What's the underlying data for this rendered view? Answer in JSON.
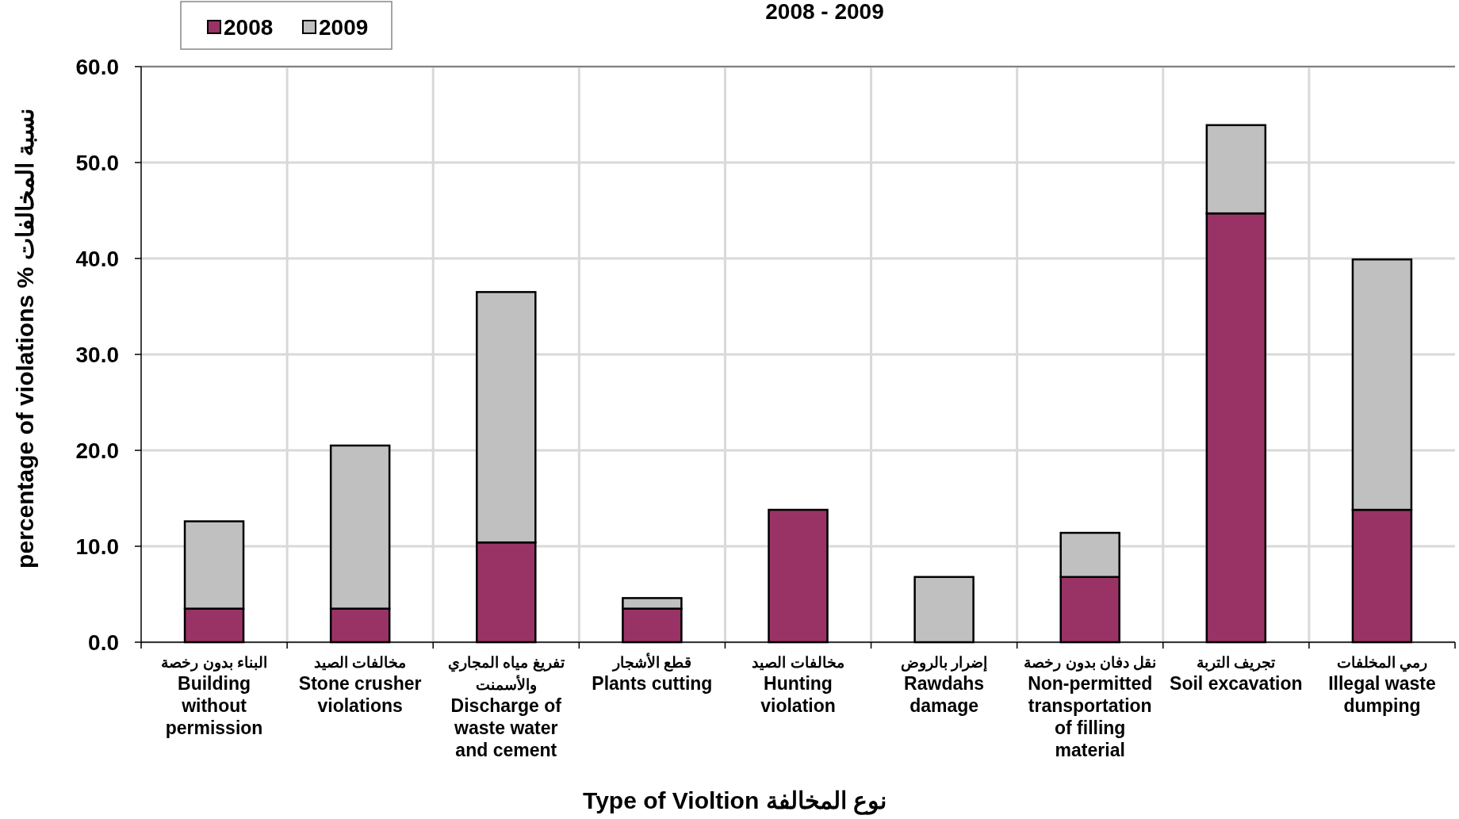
{
  "chart_data": {
    "type": "bar",
    "stacked": true,
    "title": "2008 - 2009",
    "xlabel": "Type of Violtion  نوع المخالفة",
    "ylabel": "percentage of violations    % نسبة المخالفات",
    "categories": [
      "البناء بدون رخصة\nBuilding\nwithout\npermission",
      "مخالفات الصيد\nStone crusher\nviolations",
      "تفريغ مياه المجاري\nوالأسمنت\nDischarge of\nwaste water\nand cement",
      "قطع الأشجار\nPlants cutting",
      "مخالفات الصيد\nHunting\nviolation",
      "إضرار بالروض\nRawdahs\ndamage",
      "نقل دفان بدون رخصة\nNon-permitted\ntransportation\nof filling\nmaterial",
      "تجريف التربة\nSoil excavation",
      "رمي المخلفات\nIllegal waste\ndumping"
    ],
    "series": [
      {
        "name": "2008",
        "color": "#993366",
        "values": [
          3.5,
          3.5,
          10.4,
          3.5,
          13.8,
          0,
          6.8,
          44.7,
          13.8
        ]
      },
      {
        "name": "2009",
        "color": "#c0c0c0",
        "values": [
          9.1,
          17.0,
          26.1,
          1.1,
          0,
          6.8,
          4.6,
          9.2,
          26.1
        ]
      }
    ],
    "ylim": [
      0,
      60
    ],
    "yticks": [
      {
        "value": 0,
        "label": "0.0"
      },
      {
        "value": 10,
        "label": "10.0"
      },
      {
        "value": 20,
        "label": "20.0"
      },
      {
        "value": 30,
        "label": "30.0"
      },
      {
        "value": 40,
        "label": "40.0"
      },
      {
        "value": 50,
        "label": "50.0"
      },
      {
        "value": 60,
        "label": "60.0"
      }
    ],
    "grid": true,
    "legend": "top left"
  }
}
